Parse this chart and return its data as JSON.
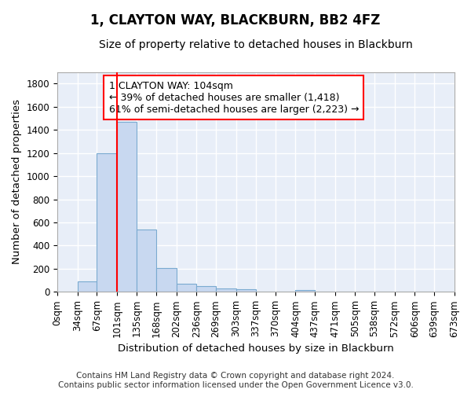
{
  "title": "1, CLAYTON WAY, BLACKBURN, BB2 4FZ",
  "subtitle": "Size of property relative to detached houses in Blackburn",
  "xlabel": "Distribution of detached houses by size in Blackburn",
  "ylabel": "Number of detached properties",
  "footer_line1": "Contains HM Land Registry data © Crown copyright and database right 2024.",
  "footer_line2": "Contains public sector information licensed under the Open Government Licence v3.0.",
  "bin_edges": [
    0,
    34,
    67,
    101,
    135,
    168,
    202,
    236,
    269,
    303,
    337,
    370,
    404,
    437,
    471,
    505,
    538,
    572,
    606,
    639,
    673
  ],
  "bar_heights": [
    0,
    90,
    1200,
    1470,
    540,
    205,
    70,
    50,
    30,
    20,
    0,
    0,
    15,
    0,
    0,
    0,
    0,
    0,
    0,
    0
  ],
  "bar_color": "#c8d8f0",
  "bar_edge_color": "#7aaad0",
  "red_line_x": 101,
  "annotation_box_text": "1 CLAYTON WAY: 104sqm\n← 39% of detached houses are smaller (1,418)\n61% of semi-detached houses are larger (2,223) →",
  "ylim": [
    0,
    1900
  ],
  "background_color": "#e8eef8",
  "grid_color": "white",
  "title_fontsize": 12,
  "subtitle_fontsize": 10,
  "axis_label_fontsize": 9.5,
  "tick_fontsize": 8.5,
  "annotation_fontsize": 9,
  "footer_fontsize": 7.5
}
